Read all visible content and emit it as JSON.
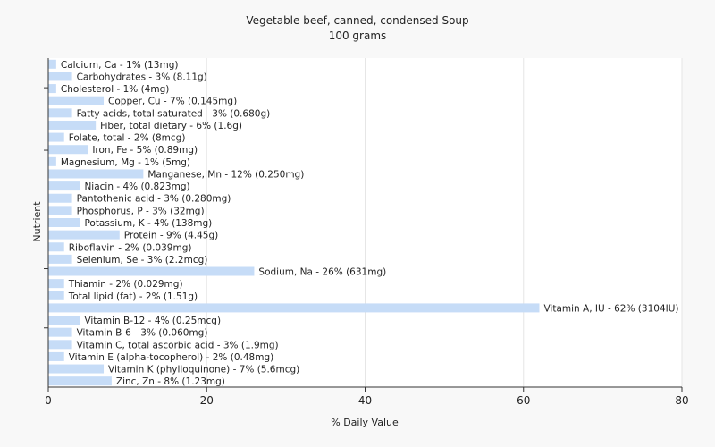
{
  "chart_data": {
    "type": "bar",
    "orientation": "horizontal",
    "title": "Vegetable beef, canned, condensed Soup",
    "subtitle": "100 grams",
    "xlabel": "% Daily Value",
    "ylabel": "Nutrient",
    "xlim": [
      0,
      80
    ],
    "xticks": [
      "0",
      "20",
      "40",
      "60",
      "80"
    ],
    "grid": true,
    "bar_color": "#c6dcf7",
    "categories": [
      "Calcium, Ca",
      "Carbohydrates",
      "Cholesterol",
      "Copper, Cu",
      "Fatty acids, total saturated",
      "Fiber, total dietary",
      "Folate, total",
      "Iron, Fe",
      "Magnesium, Mg",
      "Manganese, Mn",
      "Niacin",
      "Pantothenic acid",
      "Phosphorus, P",
      "Potassium, K",
      "Protein",
      "Riboflavin",
      "Selenium, Se",
      "Sodium, Na",
      "Thiamin",
      "Total lipid (fat)",
      "Vitamin A, IU",
      "Vitamin B-12",
      "Vitamin B-6",
      "Vitamin C, total ascorbic acid",
      "Vitamin E (alpha-tocopherol)",
      "Vitamin K (phylloquinone)",
      "Zinc, Zn"
    ],
    "values": [
      1,
      3,
      1,
      7,
      3,
      6,
      2,
      5,
      1,
      12,
      4,
      3,
      3,
      4,
      9,
      2,
      3,
      26,
      2,
      2,
      62,
      4,
      3,
      3,
      2,
      7,
      8
    ],
    "labels": [
      "Calcium, Ca - 1% (13mg)",
      "Carbohydrates - 3% (8.11g)",
      "Cholesterol - 1% (4mg)",
      "Copper, Cu - 7% (0.145mg)",
      "Fatty acids, total saturated - 3% (0.680g)",
      "Fiber, total dietary - 6% (1.6g)",
      "Folate, total - 2% (8mcg)",
      "Iron, Fe - 5% (0.89mg)",
      "Magnesium, Mg - 1% (5mg)",
      "Manganese, Mn - 12% (0.250mg)",
      "Niacin - 4% (0.823mg)",
      "Pantothenic acid - 3% (0.280mg)",
      "Phosphorus, P - 3% (32mg)",
      "Potassium, K - 4% (138mg)",
      "Protein - 9% (4.45g)",
      "Riboflavin - 2% (0.039mg)",
      "Selenium, Se - 3% (2.2mcg)",
      "Sodium, Na - 26% (631mg)",
      "Thiamin - 2% (0.029mg)",
      "Total lipid (fat) - 2% (1.51g)",
      "Vitamin A, IU - 62% (3104IU)",
      "Vitamin B-12 - 4% (0.25mcg)",
      "Vitamin B-6 - 3% (0.060mg)",
      "Vitamin C, total ascorbic acid - 3% (1.9mg)",
      "Vitamin E (alpha-tocopherol) - 2% (0.48mg)",
      "Vitamin K (phylloquinone) - 7% (5.6mcg)",
      "Zinc, Zn - 8% (1.23mg)"
    ]
  }
}
